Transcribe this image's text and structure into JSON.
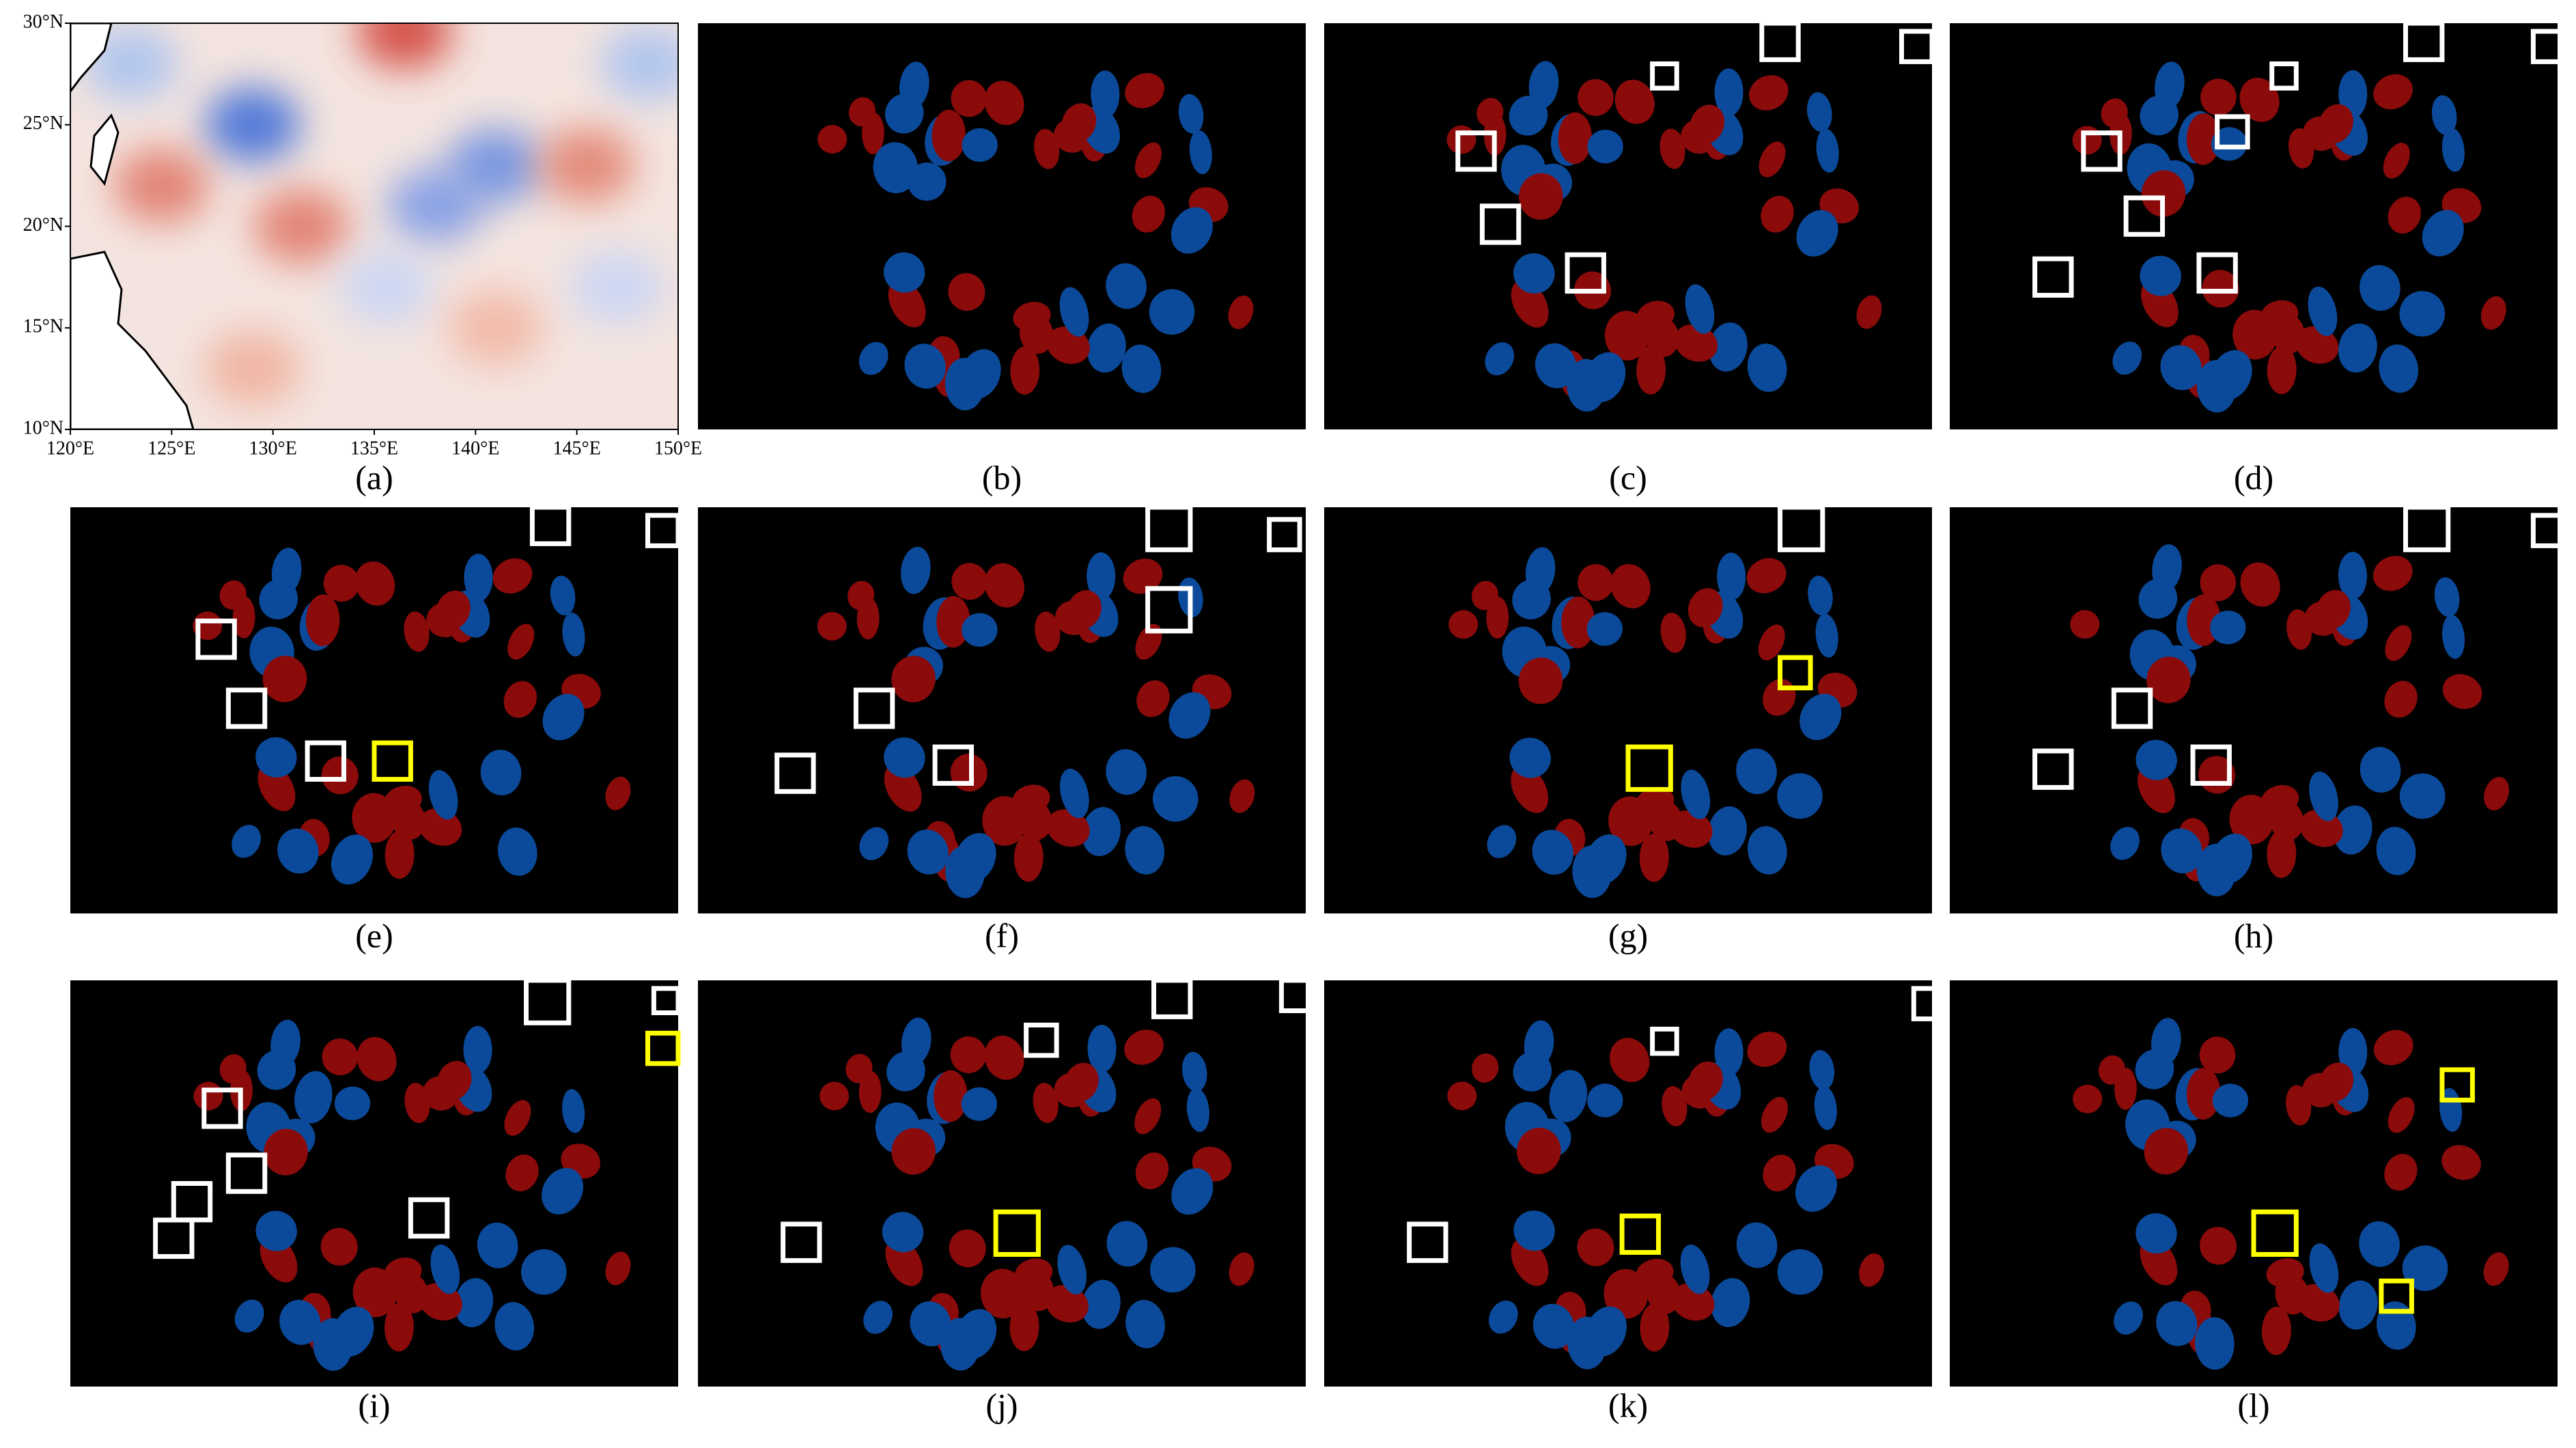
{
  "map_panel": {
    "lat_ticks": [
      "30°N",
      "25°N",
      "20°N",
      "15°N",
      "10°N"
    ],
    "lon_ticks": [
      "120°E",
      "125°E",
      "130°E",
      "135°E",
      "140°E",
      "145°E",
      "150°E"
    ]
  },
  "captions": [
    "(a)",
    "(b)",
    "(c)",
    "(d)",
    "(e)",
    "(f)",
    "(g)",
    "(h)",
    "(i)",
    "(j)",
    "(k)",
    "(l)"
  ]
}
